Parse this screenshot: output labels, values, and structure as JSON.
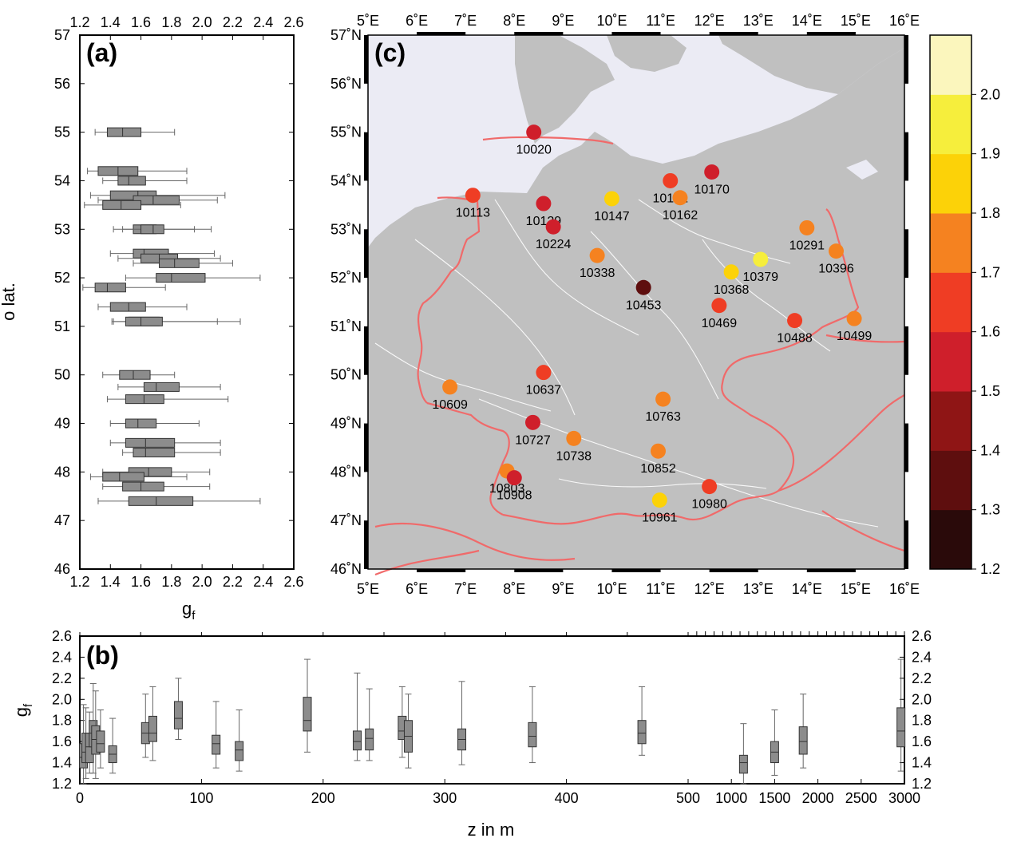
{
  "chart_data": [
    {
      "panel": "(a)",
      "type": "boxplot",
      "orientation": "horizontal",
      "xlabel": "g",
      "xlabel_sub": "f",
      "ylabel": "o lat.",
      "xlim": [
        1.2,
        2.6
      ],
      "ylim": [
        46,
        57
      ],
      "xticks": [
        "1.2",
        "1.4",
        "1.6",
        "1.8",
        "2.0",
        "2.2",
        "2.4",
        "2.6"
      ],
      "yticks": [
        "46",
        "47",
        "48",
        "49",
        "50",
        "51",
        "52",
        "53",
        "54",
        "55",
        "56",
        "57"
      ],
      "boxes": [
        {
          "lat": 55.0,
          "min": 1.3,
          "q1": 1.38,
          "median": 1.48,
          "q3": 1.6,
          "max": 1.82
        },
        {
          "lat": 54.2,
          "min": 1.25,
          "q1": 1.32,
          "median": 1.45,
          "q3": 1.58,
          "max": 1.9
        },
        {
          "lat": 54.0,
          "min": 1.35,
          "q1": 1.45,
          "median": 1.52,
          "q3": 1.63,
          "max": 1.9
        },
        {
          "lat": 53.7,
          "min": 1.27,
          "q1": 1.4,
          "median": 1.58,
          "q3": 1.7,
          "max": 2.15
        },
        {
          "lat": 53.6,
          "min": 1.32,
          "q1": 1.55,
          "median": 1.68,
          "q3": 1.85,
          "max": 2.1
        },
        {
          "lat": 53.5,
          "min": 1.23,
          "q1": 1.35,
          "median": 1.47,
          "q3": 1.6,
          "max": 1.86
        },
        {
          "lat": 53.0,
          "min": 1.42,
          "q1": 1.55,
          "median": 1.63,
          "q3": 1.7,
          "max": 1.95
        },
        {
          "lat": 53.0,
          "min": 1.48,
          "q1": 1.6,
          "median": 1.68,
          "q3": 1.75,
          "max": 2.06
        },
        {
          "lat": 52.5,
          "min": 1.4,
          "q1": 1.55,
          "median": 1.62,
          "q3": 1.78,
          "max": 2.08
        },
        {
          "lat": 52.4,
          "min": 1.45,
          "q1": 1.6,
          "median": 1.72,
          "q3": 1.84,
          "max": 2.12
        },
        {
          "lat": 52.3,
          "min": 1.55,
          "q1": 1.72,
          "median": 1.82,
          "q3": 1.98,
          "max": 2.2
        },
        {
          "lat": 52.0,
          "min": 1.5,
          "q1": 1.7,
          "median": 1.8,
          "q3": 2.02,
          "max": 2.38
        },
        {
          "lat": 51.8,
          "min": 1.22,
          "q1": 1.3,
          "median": 1.38,
          "q3": 1.5,
          "max": 1.76
        },
        {
          "lat": 51.4,
          "min": 1.32,
          "q1": 1.4,
          "median": 1.52,
          "q3": 1.63,
          "max": 1.9
        },
        {
          "lat": 51.1,
          "min": 1.41,
          "q1": 1.52,
          "median": 1.62,
          "q3": 1.72,
          "max": 2.1
        },
        {
          "lat": 51.1,
          "min": 1.42,
          "q1": 1.5,
          "median": 1.6,
          "q3": 1.74,
          "max": 2.25
        },
        {
          "lat": 50.0,
          "min": 1.35,
          "q1": 1.46,
          "median": 1.55,
          "q3": 1.66,
          "max": 1.82
        },
        {
          "lat": 49.75,
          "min": 1.45,
          "q1": 1.62,
          "median": 1.7,
          "q3": 1.85,
          "max": 2.12
        },
        {
          "lat": 49.5,
          "min": 1.38,
          "q1": 1.5,
          "median": 1.62,
          "q3": 1.75,
          "max": 2.17
        },
        {
          "lat": 49.0,
          "min": 1.4,
          "q1": 1.5,
          "median": 1.58,
          "q3": 1.7,
          "max": 1.98
        },
        {
          "lat": 48.6,
          "min": 1.4,
          "q1": 1.5,
          "median": 1.63,
          "q3": 1.82,
          "max": 2.12
        },
        {
          "lat": 48.4,
          "min": 1.48,
          "q1": 1.55,
          "median": 1.63,
          "q3": 1.82,
          "max": 2.12
        },
        {
          "lat": 48.0,
          "min": 1.35,
          "q1": 1.52,
          "median": 1.65,
          "q3": 1.8,
          "max": 2.05
        },
        {
          "lat": 47.9,
          "min": 1.27,
          "q1": 1.35,
          "median": 1.46,
          "q3": 1.62,
          "max": 1.9
        },
        {
          "lat": 47.7,
          "min": 1.35,
          "q1": 1.48,
          "median": 1.6,
          "q3": 1.75,
          "max": 2.05
        },
        {
          "lat": 47.4,
          "min": 1.32,
          "q1": 1.52,
          "median": 1.7,
          "q3": 1.94,
          "max": 2.38
        }
      ]
    },
    {
      "panel": "(b)",
      "type": "boxplot",
      "orientation": "vertical",
      "xlabel": "z in m",
      "ylabel": "g",
      "ylabel_sub": "f",
      "xscale": "linear 0-500, compressed 500-3000",
      "ylim": [
        1.2,
        2.6
      ],
      "xticks": [
        "0",
        "100",
        "200",
        "300",
        "400",
        "500",
        "1000",
        "1500",
        "2000",
        "2500",
        "3000"
      ],
      "yticks": [
        "1.2",
        "1.4",
        "1.6",
        "1.8",
        "2.0",
        "2.2",
        "2.4",
        "2.6"
      ],
      "boxes": [
        {
          "z": 3,
          "min": 1.2,
          "q1": 1.35,
          "median": 1.45,
          "q3": 1.58,
          "max": 1.95
        },
        {
          "z": 5,
          "min": 1.25,
          "q1": 1.4,
          "median": 1.5,
          "q3": 1.68,
          "max": 1.92
        },
        {
          "z": 8,
          "min": 1.3,
          "q1": 1.4,
          "median": 1.55,
          "q3": 1.68,
          "max": 1.88
        },
        {
          "z": 11,
          "min": 1.3,
          "q1": 1.55,
          "median": 1.68,
          "q3": 1.8,
          "max": 2.15
        },
        {
          "z": 13,
          "min": 1.25,
          "q1": 1.48,
          "median": 1.62,
          "q3": 1.75,
          "max": 2.08
        },
        {
          "z": 17,
          "min": 1.35,
          "q1": 1.5,
          "median": 1.58,
          "q3": 1.7,
          "max": 1.9
        },
        {
          "z": 27,
          "min": 1.3,
          "q1": 1.4,
          "median": 1.48,
          "q3": 1.56,
          "max": 1.82
        },
        {
          "z": 54,
          "min": 1.45,
          "q1": 1.58,
          "median": 1.68,
          "q3": 1.78,
          "max": 2.05
        },
        {
          "z": 60,
          "min": 1.42,
          "q1": 1.6,
          "median": 1.68,
          "q3": 1.84,
          "max": 2.12
        },
        {
          "z": 81,
          "min": 1.62,
          "q1": 1.72,
          "median": 1.82,
          "q3": 1.98,
          "max": 2.2
        },
        {
          "z": 112,
          "min": 1.35,
          "q1": 1.48,
          "median": 1.58,
          "q3": 1.66,
          "max": 1.98
        },
        {
          "z": 131,
          "min": 1.32,
          "q1": 1.42,
          "median": 1.52,
          "q3": 1.6,
          "max": 1.9
        },
        {
          "z": 187,
          "min": 1.5,
          "q1": 1.7,
          "median": 1.8,
          "q3": 2.02,
          "max": 2.38
        },
        {
          "z": 228,
          "min": 1.42,
          "q1": 1.52,
          "median": 1.6,
          "q3": 1.7,
          "max": 2.25
        },
        {
          "z": 238,
          "min": 1.42,
          "q1": 1.52,
          "median": 1.63,
          "q3": 1.72,
          "max": 2.1
        },
        {
          "z": 265,
          "min": 1.45,
          "q1": 1.62,
          "median": 1.7,
          "q3": 1.84,
          "max": 2.12
        },
        {
          "z": 270,
          "min": 1.35,
          "q1": 1.5,
          "median": 1.65,
          "q3": 1.8,
          "max": 2.05
        },
        {
          "z": 314,
          "min": 1.38,
          "q1": 1.52,
          "median": 1.62,
          "q3": 1.72,
          "max": 2.17
        },
        {
          "z": 372,
          "min": 1.4,
          "q1": 1.55,
          "median": 1.65,
          "q3": 1.78,
          "max": 2.12
        },
        {
          "z": 462,
          "min": 1.47,
          "q1": 1.58,
          "median": 1.68,
          "q3": 1.8,
          "max": 2.12
        },
        {
          "z": 1140,
          "min": 1.2,
          "q1": 1.3,
          "median": 1.4,
          "q3": 1.47,
          "max": 1.77
        },
        {
          "z": 1500,
          "min": 1.28,
          "q1": 1.4,
          "median": 1.5,
          "q3": 1.6,
          "max": 1.9
        },
        {
          "z": 1830,
          "min": 1.35,
          "q1": 1.48,
          "median": 1.6,
          "q3": 1.74,
          "max": 2.05
        },
        {
          "z": 2960,
          "min": 1.32,
          "q1": 1.55,
          "median": 1.7,
          "q3": 1.92,
          "max": 2.38
        }
      ]
    },
    {
      "panel": "(c)",
      "type": "scatter",
      "subtype": "map",
      "xlim": [
        5,
        16
      ],
      "ylim": [
        46,
        57
      ],
      "xticks": [
        "5˚E",
        "6˚E",
        "7˚E",
        "8˚E",
        "9˚E",
        "10˚E",
        "11˚E",
        "12˚E",
        "13˚E",
        "14˚E",
        "15˚E",
        "16˚E"
      ],
      "yticks": [
        "46˚N",
        "47˚N",
        "48˚N",
        "49˚N",
        "50˚N",
        "51˚N",
        "52˚N",
        "53˚N",
        "54˚N",
        "55˚N",
        "56˚N",
        "57˚N"
      ],
      "colorbar": {
        "ticks": [
          "1.2",
          "1.3",
          "1.4",
          "1.5",
          "1.6",
          "1.7",
          "1.8",
          "1.9",
          "2.0"
        ],
        "bins": [
          {
            "from": 1.2,
            "to": 1.3,
            "color": "#2a0a0a"
          },
          {
            "from": 1.3,
            "to": 1.4,
            "color": "#5e0e0e"
          },
          {
            "from": 1.4,
            "to": 1.5,
            "color": "#8f1515"
          },
          {
            "from": 1.5,
            "to": 1.6,
            "color": "#cf1f2b"
          },
          {
            "from": 1.6,
            "to": 1.7,
            "color": "#ef3d24"
          },
          {
            "from": 1.7,
            "to": 1.8,
            "color": "#f58220"
          },
          {
            "from": 1.8,
            "to": 1.9,
            "color": "#fcd208"
          },
          {
            "from": 1.9,
            "to": 2.0,
            "color": "#f6ee3c"
          },
          {
            "from": 2.0,
            "to": 2.1,
            "color": "#fbf6bd"
          }
        ]
      },
      "stations": [
        {
          "id": "10020",
          "lon": 8.4,
          "lat": 55.0,
          "g": 1.55
        },
        {
          "id": "10113",
          "lon": 7.15,
          "lat": 53.7,
          "g": 1.65
        },
        {
          "id": "10129",
          "lon": 8.6,
          "lat": 53.53,
          "g": 1.55
        },
        {
          "id": "10147",
          "lon": 10.0,
          "lat": 53.63,
          "g": 1.85
        },
        {
          "id": "10161",
          "lon": 11.2,
          "lat": 54.0,
          "g": 1.65
        },
        {
          "id": "10162",
          "lon": 11.4,
          "lat": 53.65,
          "g": 1.75
        },
        {
          "id": "10170",
          "lon": 12.05,
          "lat": 54.18,
          "g": 1.55
        },
        {
          "id": "10224",
          "lon": 8.8,
          "lat": 53.05,
          "g": 1.55
        },
        {
          "id": "10291",
          "lon": 14.0,
          "lat": 53.03,
          "g": 1.75
        },
        {
          "id": "10338",
          "lon": 9.7,
          "lat": 52.46,
          "g": 1.75
        },
        {
          "id": "10368",
          "lon": 12.45,
          "lat": 52.12,
          "g": 1.85
        },
        {
          "id": "10379",
          "lon": 13.05,
          "lat": 52.38,
          "g": 1.95
        },
        {
          "id": "10396",
          "lon": 14.6,
          "lat": 52.55,
          "g": 1.75
        },
        {
          "id": "10453",
          "lon": 10.65,
          "lat": 51.8,
          "g": 1.35
        },
        {
          "id": "10469",
          "lon": 12.2,
          "lat": 51.43,
          "g": 1.65
        },
        {
          "id": "10488",
          "lon": 13.75,
          "lat": 51.12,
          "g": 1.65
        },
        {
          "id": "10499",
          "lon": 14.97,
          "lat": 51.16,
          "g": 1.75
        },
        {
          "id": "10609",
          "lon": 6.68,
          "lat": 49.75,
          "g": 1.75
        },
        {
          "id": "10637",
          "lon": 8.6,
          "lat": 50.05,
          "g": 1.65
        },
        {
          "id": "10727",
          "lon": 8.38,
          "lat": 49.02,
          "g": 1.55
        },
        {
          "id": "10738",
          "lon": 9.22,
          "lat": 48.69,
          "g": 1.75
        },
        {
          "id": "10763",
          "lon": 11.05,
          "lat": 49.5,
          "g": 1.75
        },
        {
          "id": "10803",
          "lon": 7.85,
          "lat": 48.02,
          "g": 1.75
        },
        {
          "id": "10852",
          "lon": 10.95,
          "lat": 48.43,
          "g": 1.75
        },
        {
          "id": "10908",
          "lon": 8.0,
          "lat": 47.88,
          "g": 1.55
        },
        {
          "id": "10961",
          "lon": 10.98,
          "lat": 47.42,
          "g": 1.85
        },
        {
          "id": "10980",
          "lon": 12.0,
          "lat": 47.7,
          "g": 1.65
        }
      ]
    }
  ]
}
